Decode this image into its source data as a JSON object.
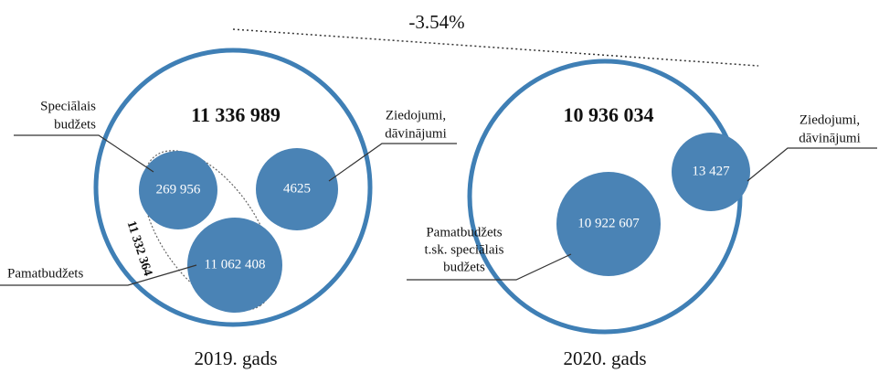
{
  "change": "-3.54%",
  "years": [
    {
      "label": "2019. gads",
      "total": "11 336 989",
      "special": {
        "label": [
          "Speciālais",
          "budžets"
        ],
        "value": "269 956"
      },
      "donations": {
        "label": [
          "Ziedojumi,",
          "dāvinājumi"
        ],
        "value": "4625"
      },
      "base": {
        "label": [
          "Pamatbudžets"
        ],
        "value": "11 062 408"
      },
      "group_total": "11 332 364"
    },
    {
      "label": "2020. gads",
      "total": "10 936 034",
      "base": {
        "label": [
          "Pamatbudžets",
          "t.sk. speciālais",
          "budžets"
        ],
        "value": "10 922 607"
      },
      "donations": {
        "label": [
          "Ziedojumi,",
          "dāvinājumi"
        ],
        "value": "13 427"
      }
    }
  ]
}
